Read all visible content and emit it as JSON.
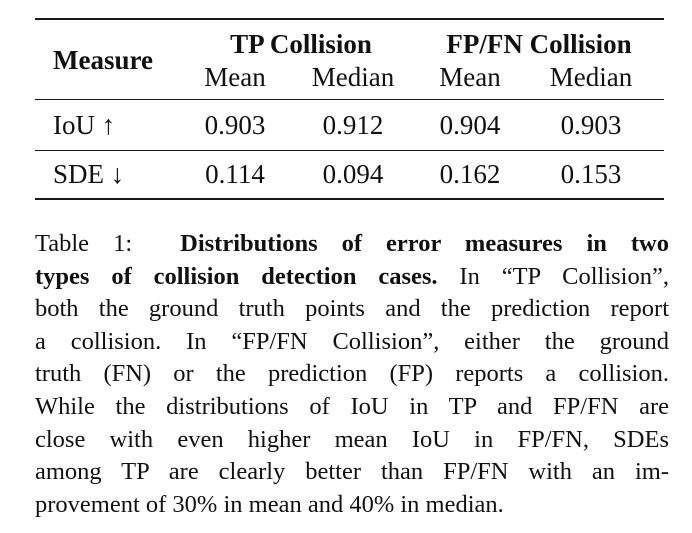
{
  "table": {
    "header": {
      "measure": "Measure",
      "group_tp": "TP Collision",
      "group_fpfn": "FP/FN Collision",
      "sub": [
        "Mean",
        "Median",
        "Mean",
        "Median"
      ]
    },
    "rows": [
      {
        "label": "IoU ↑",
        "values": [
          "0.903",
          "0.912",
          "0.904",
          "0.903"
        ]
      },
      {
        "label": "SDE ↓",
        "values": [
          "0.114",
          "0.094",
          "0.162",
          "0.153"
        ]
      }
    ]
  },
  "caption": {
    "prefix": "Table 1:",
    "bold_lead_1": "Distributions of error measures in two",
    "bold_lead_2": "types of collision detection cases.",
    "line2_rest": "In “TP Collision”,",
    "line3": "both the ground truth points and the prediction report",
    "line4": "a collision. In “FP/FN Collision”, either the ground",
    "line5": "truth (FN) or the prediction (FP) reports a collision.",
    "line6": "While the distributions of IoU in TP and FP/FN are",
    "line7": "close with even higher mean IoU in FP/FN, SDEs",
    "line8": "among TP are clearly better than FP/FN with an im-",
    "line9": "provement of 30% in mean and 40% in median."
  }
}
